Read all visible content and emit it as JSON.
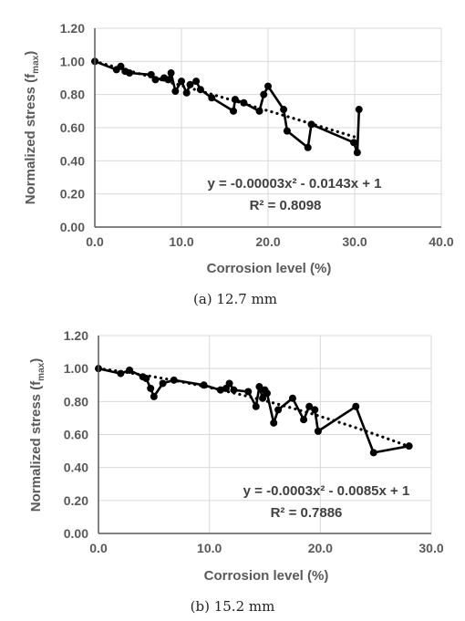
{
  "chart_data": [
    {
      "type": "line",
      "xlabel": "Corrosion level (%)",
      "ylabel": "Normalized stress (f",
      "ylabel_sub": "max",
      "ylabel_close": ")",
      "xlim": [
        0,
        40
      ],
      "ylim": [
        0,
        1.2
      ],
      "xticks": [
        "0.0",
        "10.0",
        "20.0",
        "30.0",
        "40.0"
      ],
      "yticks": [
        "0.00",
        "0.20",
        "0.40",
        "0.60",
        "0.80",
        "1.00",
        "1.20"
      ],
      "grid": true,
      "trendline": {
        "type": "polynomial",
        "a": -3e-05,
        "b": -0.0143,
        "c": 1,
        "style": "dotted"
      },
      "equation": "y = -0.00003x² - 0.0143x + 1",
      "r2": "R² = 0.8098",
      "series": [
        {
          "x": [
            0,
            2.5,
            3,
            3.5,
            4,
            6.5,
            7,
            8,
            8.5,
            8.8,
            9.3,
            10,
            10.6,
            11,
            11.7,
            12.2,
            13.5,
            16,
            16.2,
            17.2,
            19,
            19.5,
            20,
            21.8,
            22.2,
            24.6,
            25,
            29.9,
            30.3,
            30.5
          ],
          "y": [
            1.0,
            0.95,
            0.97,
            0.94,
            0.93,
            0.92,
            0.89,
            0.9,
            0.89,
            0.93,
            0.82,
            0.88,
            0.81,
            0.86,
            0.88,
            0.83,
            0.78,
            0.7,
            0.77,
            0.75,
            0.7,
            0.8,
            0.85,
            0.71,
            0.58,
            0.48,
            0.62,
            0.51,
            0.45,
            0.71
          ]
        }
      ],
      "caption": "(a) 12.7 mm"
    },
    {
      "type": "line",
      "xlabel": "Corrosion level (%)",
      "ylabel": "Normalized stress (f",
      "ylabel_sub": "max",
      "ylabel_close": ")",
      "xlim": [
        0,
        30
      ],
      "ylim": [
        0,
        1.2
      ],
      "xticks": [
        "0.0",
        "10.0",
        "20.0",
        "30.0"
      ],
      "yticks": [
        "0.00",
        "0.20",
        "0.40",
        "0.60",
        "0.80",
        "1.00",
        "1.20"
      ],
      "grid": true,
      "trendline": {
        "type": "polynomial",
        "a": -0.0003,
        "b": -0.0085,
        "c": 1,
        "style": "dotted"
      },
      "equation": "y = -0.0003x² - 0.0085x + 1",
      "r2": "R² = 0.7886",
      "series": [
        {
          "x": [
            0,
            2,
            2.8,
            4,
            4.3,
            4.7,
            5,
            5.8,
            6.8,
            9.5,
            11,
            11.5,
            11.8,
            12.2,
            13.5,
            14.2,
            14.5,
            14.8,
            15,
            15.2,
            15.8,
            16.2,
            17.5,
            18.5,
            19,
            19.5,
            19.8,
            23.2,
            24.8,
            28
          ],
          "y": [
            1.0,
            0.97,
            0.99,
            0.95,
            0.94,
            0.88,
            0.83,
            0.91,
            0.93,
            0.9,
            0.87,
            0.88,
            0.91,
            0.87,
            0.86,
            0.77,
            0.89,
            0.82,
            0.87,
            0.85,
            0.67,
            0.75,
            0.82,
            0.69,
            0.77,
            0.75,
            0.62,
            0.77,
            0.49,
            0.53
          ]
        }
      ],
      "caption": "(b) 15.2 mm"
    }
  ]
}
